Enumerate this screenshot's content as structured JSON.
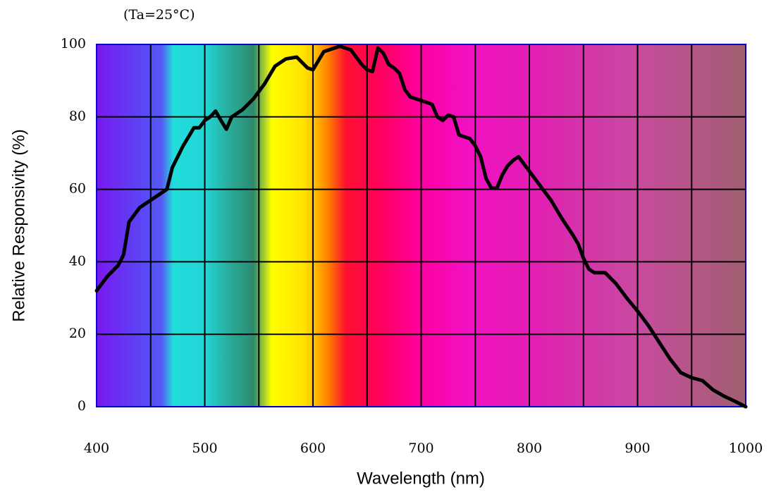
{
  "chart_data": {
    "type": "line",
    "annotation": "(Ta=25°C)",
    "x_label": "Wavelength (nm)",
    "y_label": "Relative Responsivity (%)",
    "xlim": [
      400,
      1000
    ],
    "ylim": [
      0,
      100
    ],
    "xticks": [
      400,
      500,
      600,
      700,
      800,
      900,
      1000
    ],
    "x_minor_gridlines": [
      450,
      550,
      650,
      750,
      850,
      950
    ],
    "yticks": [
      0,
      20,
      40,
      60,
      80,
      100
    ],
    "grid": true,
    "series": [
      {
        "color": "#000000",
        "x": [
          400,
          410,
          420,
          425,
          430,
          440,
          450,
          460,
          465,
          470,
          480,
          490,
          495,
          500,
          505,
          510,
          515,
          520,
          525,
          535,
          545,
          555,
          565,
          575,
          585,
          595,
          600,
          610,
          620,
          625,
          635,
          645,
          650,
          655,
          660,
          665,
          670,
          675,
          680,
          685,
          690,
          700,
          710,
          715,
          720,
          725,
          730,
          735,
          745,
          750,
          755,
          760,
          765,
          770,
          775,
          780,
          785,
          790,
          795,
          800,
          810,
          820,
          830,
          840,
          845,
          850,
          855,
          860,
          870,
          880,
          890,
          900,
          910,
          920,
          930,
          940,
          950,
          960,
          970,
          980,
          990,
          1000
        ],
        "values": [
          32,
          36,
          39,
          42,
          51,
          55,
          57,
          59,
          60,
          66,
          72,
          77,
          77,
          79,
          80,
          81.6,
          79,
          76.6,
          80,
          82,
          85,
          89,
          94,
          96,
          96.5,
          93.5,
          93,
          98,
          99,
          99.5,
          98.5,
          94.5,
          93,
          92.5,
          99,
          97.6,
          94.5,
          93.5,
          92,
          87.5,
          85.5,
          84.5,
          83.5,
          80,
          79,
          80.5,
          80,
          75,
          74,
          72,
          69,
          63,
          60.3,
          60.3,
          64,
          66.5,
          68,
          69,
          67,
          65,
          61,
          57,
          52,
          47.5,
          45,
          41,
          38,
          37,
          37,
          34,
          30,
          26.4,
          22.4,
          17.8,
          13.2,
          9.4,
          8,
          7.2,
          4.6,
          2.9,
          1.5,
          0
        ]
      }
    ]
  }
}
